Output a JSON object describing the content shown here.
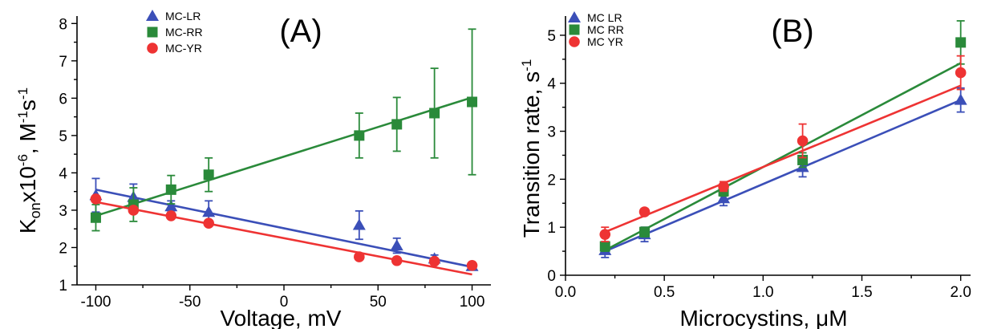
{
  "chart_data": [
    {
      "type": "scatter",
      "panel_label": "(A)",
      "xlabel": "Voltage, mV",
      "ylabel": {
        "base": "K",
        "subscript": "on",
        "mid": "x10",
        "sup1": "-6",
        "unit": ", M",
        "sup2": "-1",
        "tail": "s",
        "sup3": "-1"
      },
      "xlim": [
        -110,
        110
      ],
      "ylim": [
        1,
        8.2
      ],
      "xticks": [
        -100,
        -50,
        0,
        50,
        100
      ],
      "yticks": [
        1,
        2,
        3,
        4,
        5,
        6,
        7,
        8
      ],
      "grid": false,
      "legend_position": "top-center",
      "series": [
        {
          "name": "MC-LR",
          "color": "#3b4fb8",
          "marker": "triangle",
          "x": [
            -100,
            -80,
            -60,
            -40,
            40,
            60,
            80,
            100
          ],
          "y": [
            3.4,
            3.35,
            3.1,
            2.95,
            2.6,
            2.05,
            1.7,
            1.5
          ],
          "err": [
            0.45,
            0.35,
            0.15,
            0.3,
            0.38,
            0.2,
            0.1,
            0.06
          ],
          "fit": [
            [
              -100,
              3.55
            ],
            [
              100,
              1.48
            ]
          ]
        },
        {
          "name": "MC-RR",
          "color": "#2a8a3a",
          "marker": "square",
          "x": [
            -100,
            -80,
            -60,
            -40,
            40,
            60,
            80,
            100
          ],
          "y": [
            2.8,
            3.15,
            3.55,
            3.95,
            5.0,
            5.3,
            5.6,
            5.9
          ],
          "err": [
            0.35,
            0.45,
            0.38,
            0.45,
            0.6,
            0.72,
            1.2,
            1.95
          ],
          "fit": [
            [
              -100,
              2.85
            ],
            [
              100,
              6.02
            ]
          ]
        },
        {
          "name": "MC-YR",
          "color": "#ee3333",
          "marker": "circle",
          "x": [
            -100,
            -80,
            -60,
            -40,
            40,
            60,
            80,
            100
          ],
          "y": [
            3.3,
            3.0,
            2.85,
            2.65,
            1.75,
            1.65,
            1.63,
            1.52
          ],
          "err": [
            0.08,
            0.08,
            0.06,
            0.06,
            0.05,
            0.05,
            0.05,
            0.05
          ],
          "fit": [
            [
              -100,
              3.22
            ],
            [
              100,
              1.28
            ]
          ]
        }
      ]
    },
    {
      "type": "scatter",
      "panel_label": "(B)",
      "xlabel": "Microcystins, μM",
      "ylabel": {
        "base": "Transition rate, s",
        "sup": "-1"
      },
      "xlim": [
        0.0,
        2.05
      ],
      "ylim": [
        0,
        5.4
      ],
      "xticks": [
        0.0,
        0.5,
        1.0,
        1.5,
        2.0
      ],
      "xtick_labels": [
        "0.0",
        "0.5",
        "1.0",
        "1.5",
        "2.0"
      ],
      "yticks": [
        0,
        1,
        2,
        3,
        4,
        5
      ],
      "grid": false,
      "legend_position": "top-left",
      "series": [
        {
          "name": "MC LR",
          "color": "#3b4fb8",
          "marker": "triangle",
          "x": [
            0.2,
            0.4,
            0.8,
            1.2,
            2.0
          ],
          "y": [
            0.52,
            0.85,
            1.6,
            2.25,
            3.65
          ],
          "err": [
            0.15,
            0.15,
            0.15,
            0.2,
            0.25
          ],
          "fit": [
            [
              0.2,
              0.5
            ],
            [
              2.0,
              3.65
            ]
          ]
        },
        {
          "name": "MC RR",
          "color": "#2a8a3a",
          "marker": "square",
          "x": [
            0.2,
            0.4,
            0.8,
            1.2,
            2.0
          ],
          "y": [
            0.6,
            0.9,
            1.75,
            2.4,
            4.85
          ],
          "err": [
            0.1,
            0.1,
            0.1,
            0.15,
            0.45
          ],
          "fit": [
            [
              0.2,
              0.52
            ],
            [
              2.0,
              4.42
            ]
          ]
        },
        {
          "name": "MC YR",
          "color": "#ee3333",
          "marker": "circle",
          "x": [
            0.2,
            0.4,
            0.8,
            1.2,
            2.0
          ],
          "y": [
            0.85,
            1.32,
            1.85,
            2.8,
            4.22
          ],
          "err": [
            0.15,
            0.07,
            0.1,
            0.35,
            0.35
          ],
          "fit": [
            [
              0.2,
              0.9
            ],
            [
              2.0,
              3.95
            ]
          ]
        }
      ]
    }
  ]
}
